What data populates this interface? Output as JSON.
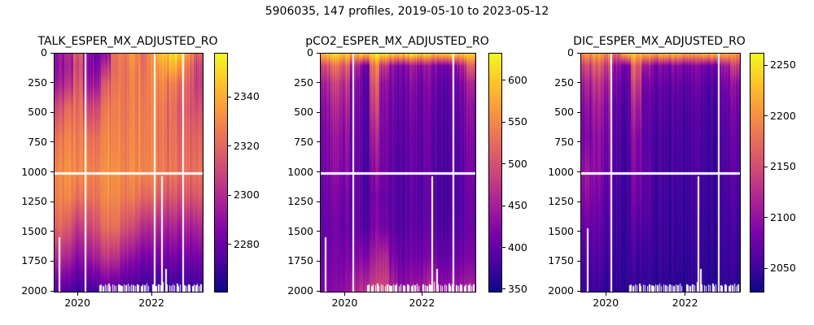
{
  "figure_title": "5906035, 147 profiles, 2019-05-10 to 2023-05-12",
  "colors": {
    "plasma_stops": [
      "#0d0887",
      "#4b03a1",
      "#7d03a8",
      "#a82296",
      "#cb4679",
      "#e56b5d",
      "#f89441",
      "#fdc328",
      "#f0f921"
    ],
    "gap_color": "#ffffff",
    "axis_color": "#000000"
  },
  "bottom_dashes": [
    [
      0.3,
      8
    ],
    [
      0.312,
      9
    ],
    [
      0.324,
      7
    ],
    [
      0.338,
      9
    ],
    [
      0.35,
      8
    ],
    [
      0.364,
      10
    ],
    [
      0.376,
      7
    ],
    [
      0.388,
      9
    ],
    [
      0.402,
      8
    ],
    [
      0.414,
      7
    ],
    [
      0.428,
      9
    ],
    [
      0.44,
      8
    ],
    [
      0.452,
      7
    ],
    [
      0.466,
      9
    ],
    [
      0.478,
      8
    ],
    [
      0.492,
      10
    ],
    [
      0.504,
      7
    ],
    [
      0.516,
      9
    ],
    [
      0.53,
      8
    ],
    [
      0.542,
      7
    ],
    [
      0.556,
      9
    ],
    [
      0.568,
      8
    ],
    [
      0.582,
      7
    ],
    [
      0.594,
      9
    ],
    [
      0.606,
      8
    ],
    [
      0.62,
      10
    ],
    [
      0.632,
      7
    ],
    [
      0.66,
      9
    ],
    [
      0.672,
      8
    ],
    [
      0.684,
      7
    ],
    [
      0.698,
      9
    ],
    [
      0.712,
      8
    ],
    [
      0.73,
      12
    ],
    [
      0.748,
      28
    ],
    [
      0.76,
      9
    ],
    [
      0.772,
      8
    ],
    [
      0.786,
      7
    ],
    [
      0.798,
      9
    ],
    [
      0.81,
      8
    ],
    [
      0.824,
      10
    ],
    [
      0.836,
      7
    ],
    [
      0.848,
      9
    ],
    [
      0.875,
      8
    ],
    [
      0.888,
      7
    ],
    [
      0.9,
      9
    ],
    [
      0.912,
      8
    ],
    [
      0.926,
      7
    ],
    [
      0.938,
      9
    ],
    [
      0.95,
      8
    ],
    [
      0.962,
      10
    ],
    [
      0.974,
      7
    ],
    [
      0.986,
      9
    ]
  ],
  "chart_data": [
    {
      "type": "heatmap",
      "title": "TALK_ESPER_MX_ADJUSTED_RO",
      "colormap": "plasma_r",
      "x_range": [
        2019.36,
        2023.36
      ],
      "x_ticks": [
        2020,
        2022
      ],
      "y_range": [
        0,
        2000
      ],
      "y_ticks": [
        0,
        250,
        500,
        750,
        1000,
        1250,
        1500,
        1750,
        2000
      ],
      "vmin": 2261,
      "vmax": 2358,
      "colorbar_ticks": [
        2340,
        2320,
        2300,
        2280
      ],
      "jitter": 9,
      "depth_levels": [
        0,
        100,
        250,
        450,
        700,
        1000,
        1200,
        1450,
        1700,
        2000
      ],
      "values": [
        [
          2328,
          2322,
          2300,
          2330,
          2334,
          2330,
          2296,
          2288,
          2285,
          2292,
          2286,
          2272,
          2270,
          2267,
          2285,
          2300
        ],
        [
          2330,
          2325,
          2305,
          2332,
          2330,
          2320,
          2298,
          2290,
          2288,
          2292,
          2288,
          2282,
          2278,
          2280,
          2295,
          2310
        ],
        [
          2325,
          2318,
          2300,
          2326,
          2322,
          2305,
          2295,
          2291,
          2290,
          2290,
          2289,
          2288,
          2292,
          2295,
          2300,
          2312
        ],
        [
          2308,
          2300,
          2294,
          2310,
          2306,
          2296,
          2292,
          2290,
          2290,
          2289,
          2290,
          2292,
          2296,
          2300,
          2302,
          2306
        ],
        [
          2296,
          2292,
          2290,
          2296,
          2294,
          2291,
          2290,
          2289,
          2289,
          2288,
          2290,
          2293,
          2296,
          2298,
          2298,
          2299
        ],
        [
          2290,
          2288,
          2287,
          2290,
          2289,
          2288,
          2287,
          2287,
          2287,
          2287,
          2289,
          2292,
          2294,
          2295,
          2295,
          2295
        ],
        [
          2292,
          2291,
          2294,
          2296,
          2293,
          2290,
          2289,
          2290,
          2292,
          2296,
          2298,
          2302,
          2304,
          2305,
          2304,
          2303
        ],
        [
          2300,
          2305,
          2312,
          2310,
          2304,
          2298,
          2296,
          2302,
          2308,
          2315,
          2318,
          2320,
          2321,
          2322,
          2321,
          2320
        ],
        [
          2318,
          2322,
          2328,
          2326,
          2320,
          2315,
          2316,
          2322,
          2328,
          2332,
          2334,
          2335,
          2335,
          2336,
          2335,
          2334
        ],
        [
          2344,
          2346,
          2348,
          2348,
          2346,
          2344,
          2345,
          2347,
          2349,
          2350,
          2350,
          2351,
          2351,
          2351,
          2350,
          2350
        ]
      ],
      "gaps_full": [
        0.205,
        0.67,
        0.862
      ],
      "gaps_partial": [
        {
          "frac": 0.72,
          "from_depth": 1030
        }
      ],
      "gaps_deep": [
        {
          "frac": 0.025,
          "from_depth": 1540
        }
      ],
      "missing_row_depth": 1003
    },
    {
      "type": "heatmap",
      "title": "pCO2_ESPER_MX_ADJUSTED_RO",
      "colormap": "plasma_r",
      "x_range": [
        2019.36,
        2023.36
      ],
      "x_ticks": [
        2020,
        2022
      ],
      "y_range": [
        0,
        2000
      ],
      "y_ticks": [
        0,
        250,
        500,
        750,
        1000,
        1250,
        1500,
        1750,
        2000
      ],
      "vmin": 348,
      "vmax": 633,
      "colorbar_ticks": [
        600,
        550,
        500,
        450,
        400,
        350
      ],
      "jitter": 26,
      "depth_levels": [
        0,
        100,
        250,
        450,
        700,
        1000,
        1200,
        1450,
        1700,
        2000
      ],
      "values": [
        [
          385,
          375,
          380,
          395,
          370,
          360,
          365,
          372,
          370,
          368,
          375,
          380,
          372,
          366,
          378,
          380
        ],
        [
          480,
          455,
          470,
          520,
          560,
          440,
          505,
          545,
          555,
          540,
          550,
          545,
          560,
          555,
          520,
          470
        ],
        [
          525,
          500,
          510,
          555,
          575,
          470,
          545,
          560,
          570,
          560,
          568,
          560,
          575,
          570,
          555,
          530
        ],
        [
          545,
          525,
          530,
          565,
          580,
          495,
          555,
          568,
          578,
          570,
          575,
          570,
          582,
          578,
          568,
          550
        ],
        [
          558,
          545,
          548,
          572,
          585,
          525,
          565,
          575,
          583,
          578,
          580,
          576,
          586,
          583,
          576,
          562
        ],
        [
          565,
          555,
          558,
          576,
          588,
          550,
          568,
          580,
          587,
          582,
          584,
          580,
          589,
          586,
          580,
          570
        ],
        [
          572,
          565,
          568,
          580,
          590,
          565,
          575,
          584,
          590,
          586,
          587,
          584,
          591,
          589,
          584,
          576
        ],
        [
          575,
          572,
          574,
          578,
          586,
          560,
          570,
          580,
          588,
          584,
          585,
          582,
          589,
          587,
          582,
          578
        ],
        [
          570,
          568,
          565,
          560,
          555,
          530,
          520,
          560,
          575,
          572,
          570,
          565,
          575,
          572,
          568,
          565
        ],
        [
          560,
          555,
          545,
          520,
          505,
          488,
          485,
          520,
          545,
          540,
          530,
          510,
          540,
          535,
          530,
          528
        ]
      ],
      "gaps_full": [
        0.205,
        0.855
      ],
      "gaps_partial": [
        {
          "frac": 0.715,
          "from_depth": 1030
        }
      ],
      "gaps_deep": [
        {
          "frac": 0.025,
          "from_depth": 1540
        }
      ],
      "missing_row_depth": 1003
    },
    {
      "type": "heatmap",
      "title": "DIC_ESPER_MX_ADJUSTED_RO",
      "colormap": "plasma_r",
      "x_range": [
        2019.36,
        2023.36
      ],
      "x_ticks": [
        2020,
        2022
      ],
      "y_range": [
        0,
        2000
      ],
      "y_ticks": [
        0,
        250,
        500,
        750,
        1000,
        1250,
        1500,
        1750,
        2000
      ],
      "vmin": 2028,
      "vmax": 2262,
      "colorbar_ticks": [
        2250,
        2200,
        2150,
        2100,
        2050
      ],
      "jitter": 20,
      "depth_levels": [
        0,
        100,
        250,
        450,
        700,
        1000,
        1200,
        1450,
        1700,
        2000
      ],
      "values": [
        [
          2095,
          2085,
          2090,
          2120,
          2070,
          2060,
          2065,
          2075,
          2068,
          2062,
          2072,
          2080,
          2068,
          2058,
          2075,
          2085
        ],
        [
          2150,
          2135,
          2145,
          2190,
          2210,
          2125,
          2180,
          2200,
          2208,
          2195,
          2205,
          2200,
          2212,
          2208,
          2185,
          2150
        ],
        [
          2180,
          2165,
          2172,
          2210,
          2222,
          2150,
          2205,
          2215,
          2222,
          2215,
          2220,
          2215,
          2226,
          2222,
          2210,
          2190
        ],
        [
          2198,
          2185,
          2190,
          2220,
          2230,
          2175,
          2215,
          2224,
          2230,
          2225,
          2228,
          2224,
          2233,
          2230,
          2222,
          2205
        ],
        [
          2208,
          2198,
          2202,
          2226,
          2235,
          2195,
          2222,
          2230,
          2235,
          2230,
          2232,
          2229,
          2237,
          2234,
          2228,
          2215
        ],
        [
          2190,
          2200,
          2210,
          2230,
          2238,
          2205,
          2218,
          2233,
          2238,
          2234,
          2235,
          2232,
          2239,
          2237,
          2232,
          2222
        ],
        [
          2200,
          2210,
          2218,
          2234,
          2240,
          2210,
          2222,
          2236,
          2240,
          2237,
          2238,
          2235,
          2241,
          2239,
          2236,
          2228
        ],
        [
          2218,
          2222,
          2226,
          2238,
          2242,
          2225,
          2230,
          2239,
          2242,
          2240,
          2240,
          2238,
          2243,
          2241,
          2239,
          2234
        ],
        [
          2230,
          2232,
          2234,
          2241,
          2244,
          2236,
          2238,
          2242,
          2244,
          2243,
          2243,
          2241,
          2245,
          2244,
          2242,
          2240
        ],
        [
          2242,
          2243,
          2244,
          2247,
          2248,
          2246,
          2245,
          2248,
          2249,
          2248,
          2248,
          2247,
          2249,
          2249,
          2248,
          2247
        ]
      ],
      "gaps_full": [
        0.185,
        0.862
      ],
      "gaps_partial": [
        {
          "frac": 0.735,
          "from_depth": 1030
        }
      ],
      "gaps_deep": [
        {
          "frac": 0.035,
          "from_depth": 1470
        }
      ],
      "missing_row_depth": 1003
    }
  ]
}
